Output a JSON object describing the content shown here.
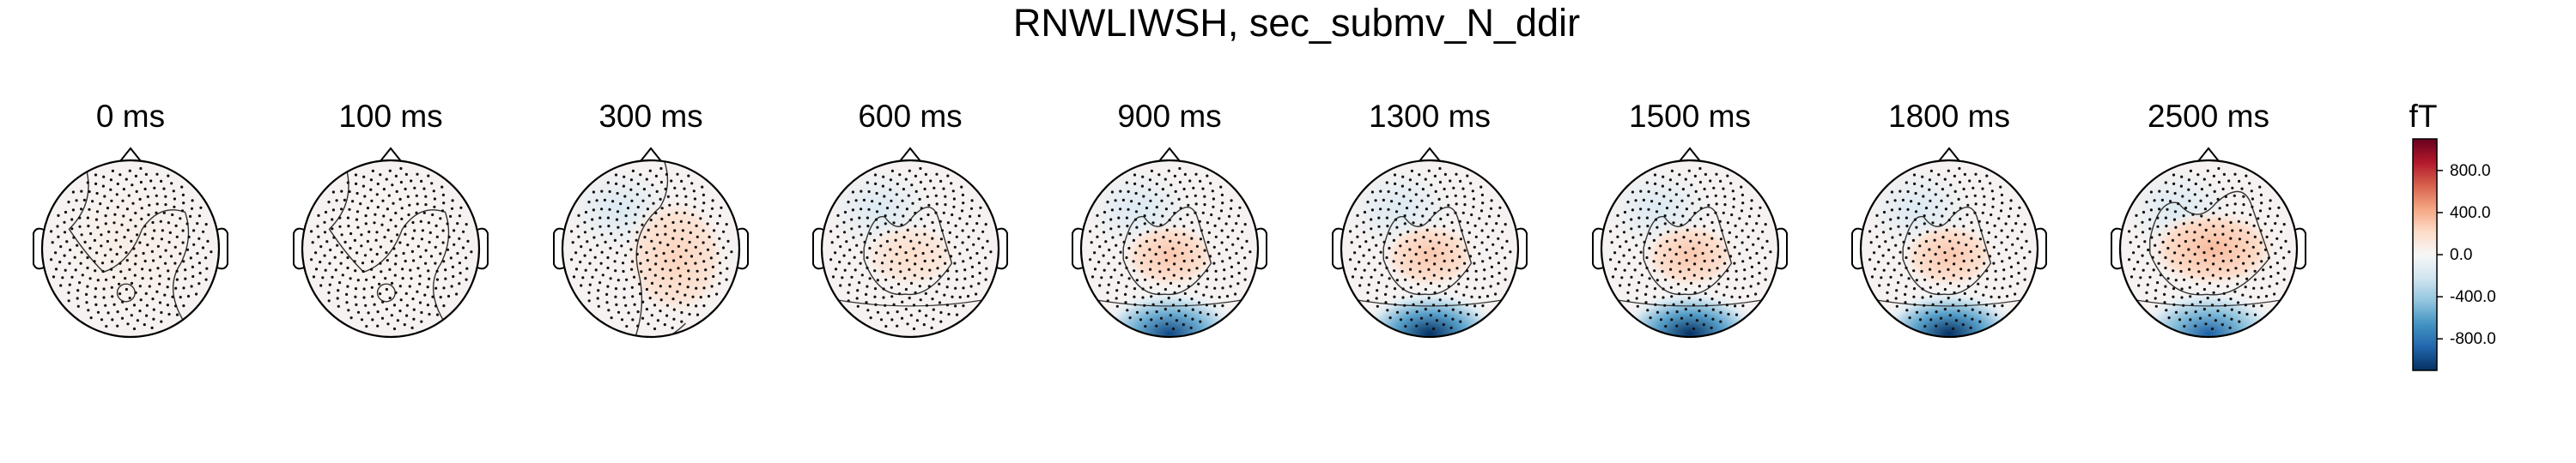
{
  "chart_data": {
    "type": "heatmap",
    "title": "RNWLIWSH, sec_submv_N_ddir",
    "colorbar": {
      "unit": "fT",
      "ticks": [
        800.0,
        400.0,
        0.0,
        -400.0,
        -800.0
      ],
      "tick_labels": [
        "800.0",
        "400.0",
        "0.0",
        "-400.0",
        "-800.0"
      ],
      "range": [
        -1100,
        1100
      ],
      "colormap": "RdBu_r",
      "colors": [
        "#053061",
        "#2166ac",
        "#4393c3",
        "#92c5de",
        "#d1e5f0",
        "#f7f7f7",
        "#fddbc7",
        "#f4a582",
        "#d6604d",
        "#b2182b",
        "#67001f"
      ]
    },
    "topomaps": [
      {
        "time": "0 ms",
        "max_pos_fT": 80,
        "max_neg_fT": -20
      },
      {
        "time": "100 ms",
        "max_pos_fT": 40,
        "max_neg_fT": -40
      },
      {
        "time": "300 ms",
        "max_pos_fT": 250,
        "max_neg_fT": -150
      },
      {
        "time": "600 ms",
        "max_pos_fT": 200,
        "max_neg_fT": -200
      },
      {
        "time": "900 ms",
        "max_pos_fT": 300,
        "max_neg_fT": -1000
      },
      {
        "time": "1300 ms",
        "max_pos_fT": 300,
        "max_neg_fT": -1100
      },
      {
        "time": "1500 ms",
        "max_pos_fT": 300,
        "max_neg_fT": -1100
      },
      {
        "time": "1800 ms",
        "max_pos_fT": 300,
        "max_neg_fT": -1100
      },
      {
        "time": "2500 ms",
        "max_pos_fT": 350,
        "max_neg_fT": -900
      }
    ]
  }
}
